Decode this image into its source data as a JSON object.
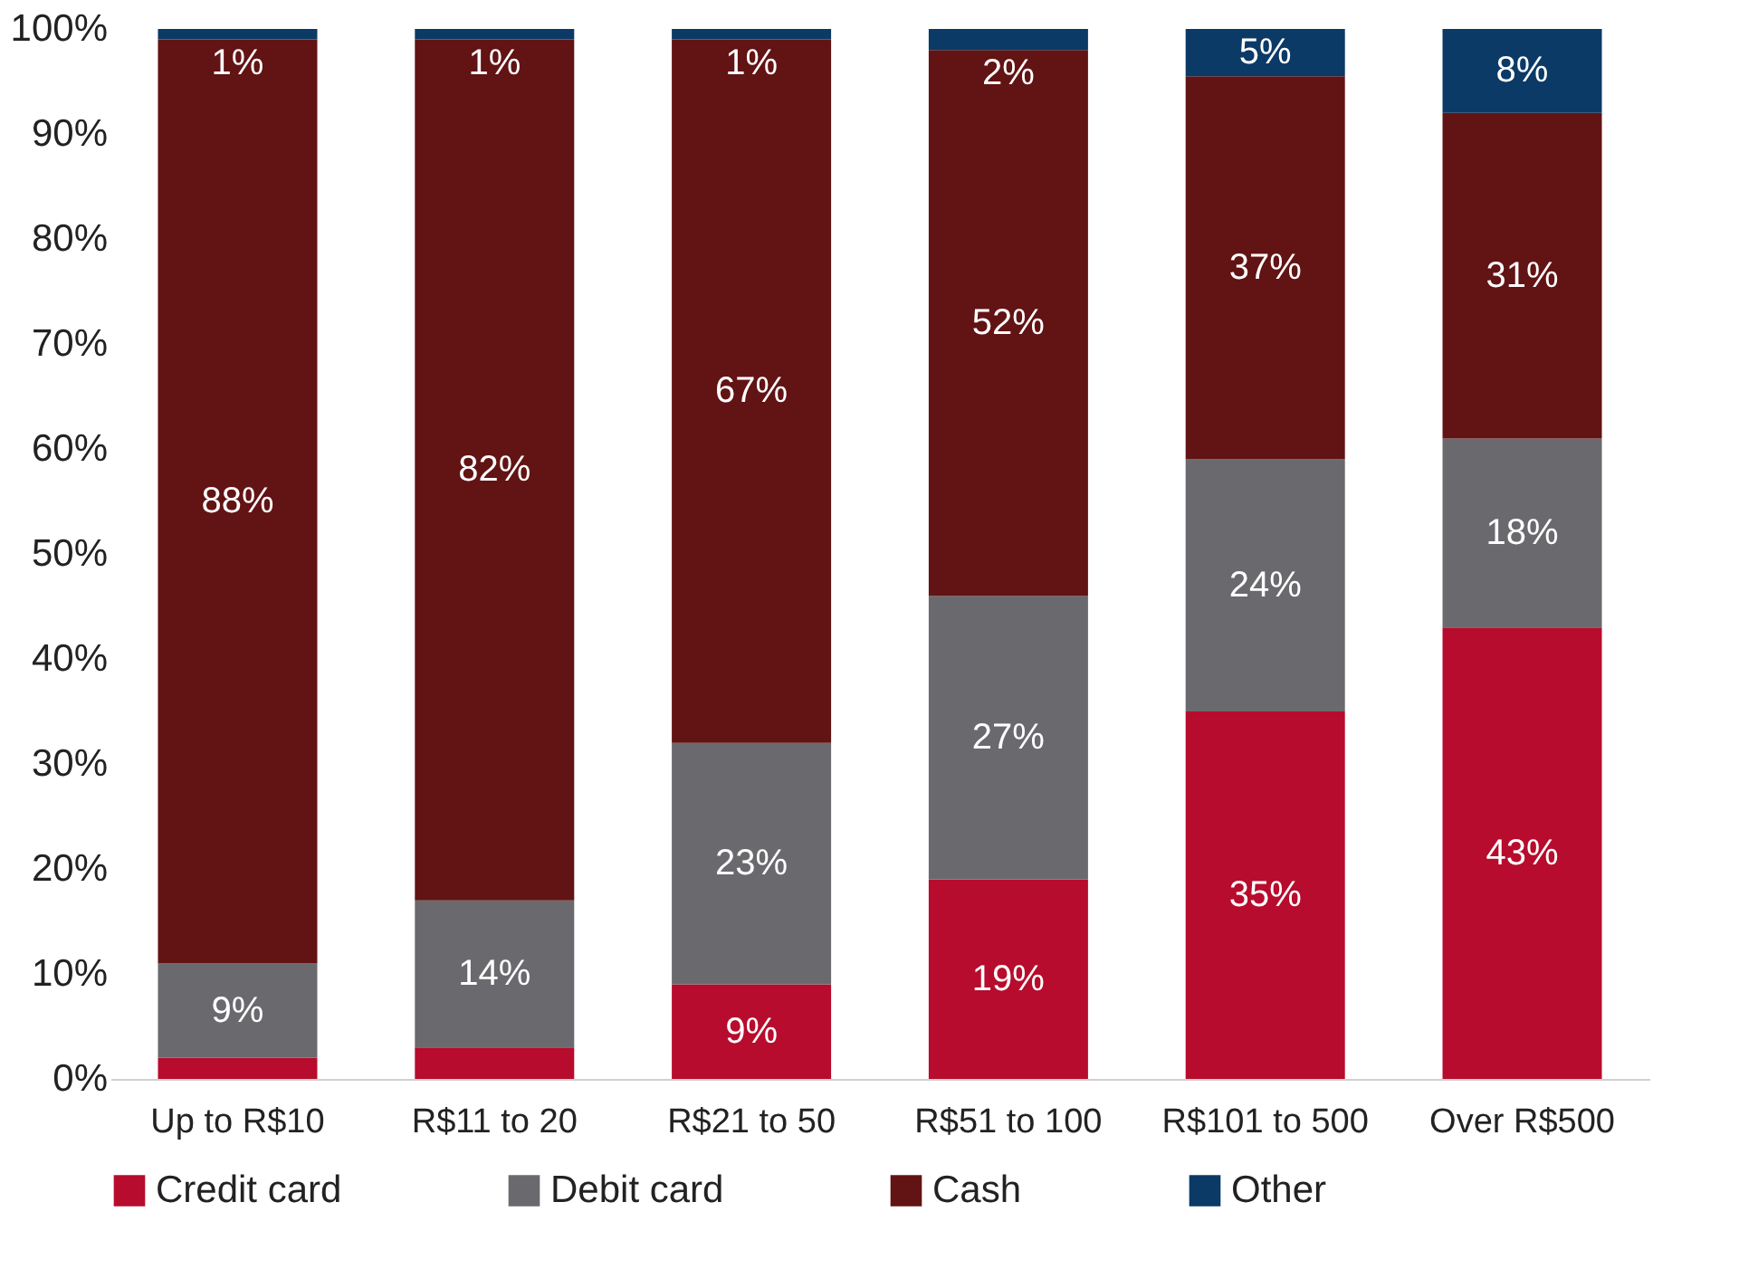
{
  "chart_data": {
    "type": "bar",
    "stacked": true,
    "categories": [
      "Up to R$10",
      "R$11 to 20",
      "R$21 to 50",
      "R$51 to 100",
      "R$101 to 500",
      "Over R$500"
    ],
    "series": [
      {
        "name": "Credit card",
        "color": "#b70c2d",
        "values": [
          2,
          3,
          9,
          19,
          35,
          43
        ],
        "value_labels": [
          null,
          null,
          "9%",
          "19%",
          "35%",
          "43%"
        ]
      },
      {
        "name": "Debit card",
        "color": "#6a6a6e",
        "values": [
          9,
          14,
          23,
          27,
          24,
          18
        ],
        "value_labels": [
          "9%",
          "14%",
          "23%",
          "27%",
          "24%",
          "18%"
        ]
      },
      {
        "name": "Cash",
        "color": "#621314",
        "values": [
          88,
          82,
          67,
          52,
          36.5,
          31
        ],
        "value_labels": [
          "88%",
          "82%",
          "67%",
          "52%",
          "37%",
          "31%"
        ]
      },
      {
        "name": "Other",
        "color": "#0b3a66",
        "values": [
          1,
          1,
          1,
          2,
          4.5,
          8
        ],
        "value_labels": [
          "1%",
          "1%",
          "1%",
          "2%",
          "5%",
          "8%"
        ]
      }
    ],
    "ylim": [
      0,
      100
    ],
    "yticks": [
      {
        "value": 0,
        "label": "0%"
      },
      {
        "value": 10,
        "label": "10%"
      },
      {
        "value": 20,
        "label": "20%"
      },
      {
        "value": 30,
        "label": "30%"
      },
      {
        "value": 40,
        "label": "40%"
      },
      {
        "value": 50,
        "label": "50%"
      },
      {
        "value": 60,
        "label": "60%"
      },
      {
        "value": 70,
        "label": "70%"
      },
      {
        "value": 80,
        "label": "80%"
      },
      {
        "value": 90,
        "label": "90%"
      },
      {
        "value": 100,
        "label": "100%"
      }
    ],
    "grid": false,
    "legend": "bottom"
  }
}
